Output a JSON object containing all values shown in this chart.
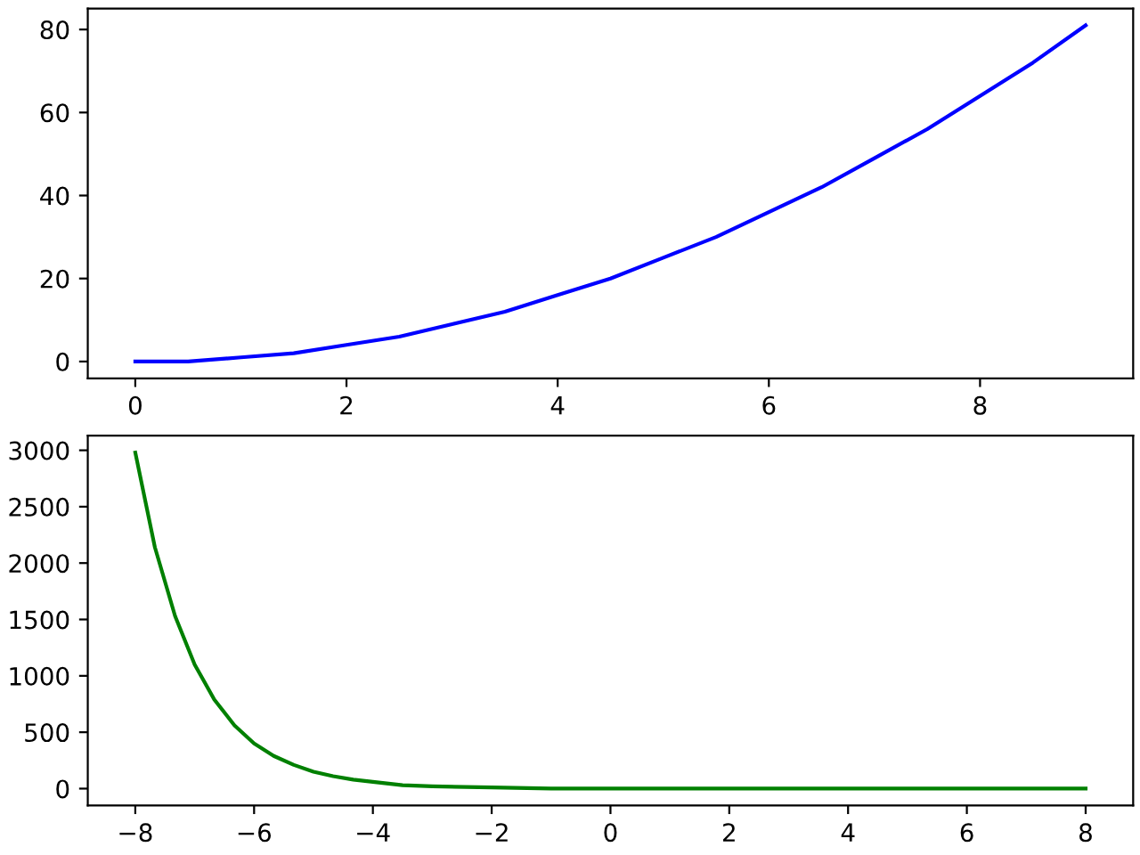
{
  "chart_data": [
    {
      "type": "line",
      "x": [
        0,
        0.5,
        1,
        1.5,
        2,
        2.5,
        3,
        3.5,
        4,
        4.5,
        5,
        5.5,
        6,
        6.5,
        7,
        7.5,
        8,
        8.5,
        9
      ],
      "series": [
        {
          "color": "#0000ff",
          "values": [
            0,
            0,
            1,
            2,
            4,
            6,
            9,
            12,
            16,
            20,
            25,
            30,
            36,
            42,
            49,
            56,
            64,
            72,
            81
          ]
        }
      ],
      "xlim": [
        -0.45,
        9.45
      ],
      "ylim": [
        -4.05,
        85.05
      ],
      "xticks": [
        0,
        2,
        4,
        6,
        8
      ],
      "yticks": [
        0,
        20,
        40,
        60,
        80
      ],
      "grid": false,
      "legend": false,
      "marker": "none",
      "line_style": "solid"
    },
    {
      "type": "line",
      "x": [
        -8,
        -7.67,
        -7.33,
        -7,
        -6.67,
        -6.33,
        -6,
        -5.67,
        -5.33,
        -5,
        -4.67,
        -4.33,
        -4,
        -3.5,
        -3,
        -2,
        -1,
        0,
        2,
        4,
        6,
        8
      ],
      "series": [
        {
          "color": "#008000",
          "values": [
            2980,
            2140,
            1530,
            1100,
            790,
            560,
            400,
            290,
            210,
            150,
            110,
            80,
            60,
            30,
            20,
            10,
            0,
            0,
            0,
            0,
            0,
            0
          ]
        }
      ],
      "xlim": [
        -8.8,
        8.8
      ],
      "ylim": [
        -149,
        3130
      ],
      "xticks": [
        {
          "value": -8,
          "label": "−8"
        },
        {
          "value": -6,
          "label": "−6"
        },
        {
          "value": -4,
          "label": "−4"
        },
        {
          "value": -2,
          "label": "−2"
        },
        0,
        2,
        4,
        6,
        8
      ],
      "yticks": [
        0,
        500,
        1000,
        1500,
        2000,
        2500,
        3000
      ],
      "grid": false,
      "legend": false,
      "marker": "none",
      "line_style": "solid"
    }
  ]
}
